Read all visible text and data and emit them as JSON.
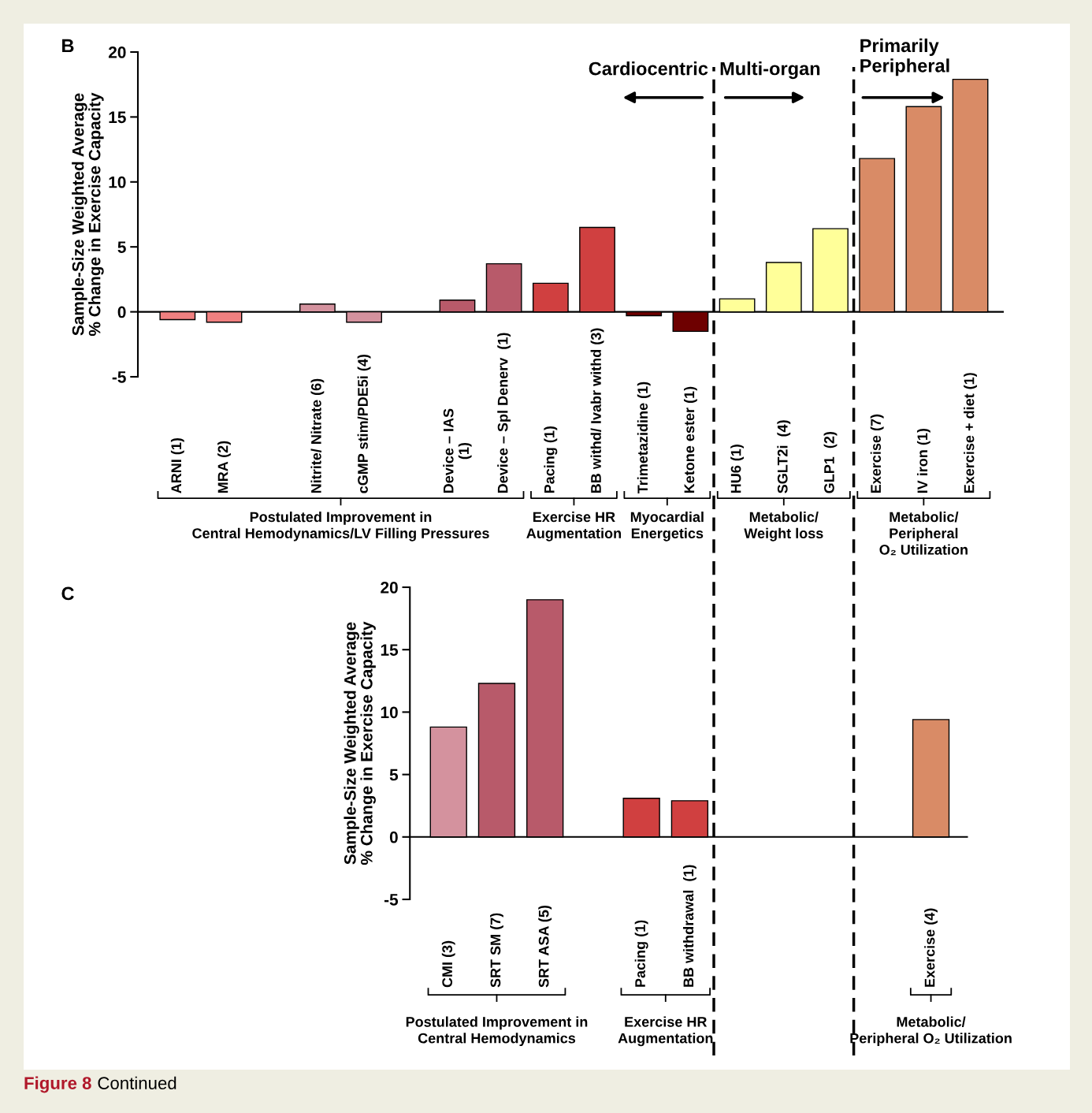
{
  "chart_data": [
    {
      "type": "bar",
      "categories": [
        "ARNI (1)",
        "MRA (2)",
        null,
        "Nitrite/ Nitrate (6)",
        "cGMP stim/PDE5i (4)",
        null,
        "Device – IAS\n(1)",
        "Device – Spl Denerv  (1)",
        "Pacing (1)",
        "BB withd/ Ivabr withd (3)",
        "Trimetazidine (1)",
        "Ketone ester (1)",
        "HU6 (1)",
        "SGLT2i  (4)",
        "GLP1  (2)",
        "Exercise (7)",
        "IV iron (1)",
        "Exercise + diet (1)"
      ],
      "values": [
        -0.6,
        -0.8,
        null,
        0.6,
        -0.8,
        null,
        0.9,
        3.7,
        2.2,
        6.5,
        -0.3,
        -1.5,
        1.0,
        3.8,
        6.4,
        11.8,
        15.8,
        17.9
      ],
      "colors": [
        "#f08080",
        "#f08080",
        null,
        "#d4929e",
        "#d4929e",
        null,
        "#b85a6a",
        "#b85a6a",
        "#d04040",
        "#d04040",
        "#6e0000",
        "#6e0000",
        "#ffff99",
        "#ffff99",
        "#ffff99",
        "#d98b66",
        "#d98b66",
        "#d98b66"
      ],
      "ylim": [
        -5,
        20
      ],
      "yticks": [
        -5,
        0,
        5,
        10,
        15,
        20
      ],
      "ylabel": "Sample-Size Weighted Average\n% Change in Exercise Capacity",
      "annotations": [
        "B",
        "Cardiocentric",
        "Multi-organ",
        "Primarily\nPeripheral",
        "Postulated Improvement in\nCentral Hemodynamics/LV Filling Pressures",
        "Exercise HR\nAugmentation",
        "Myocardial\nEnergetics",
        "Metabolic/\nWeight loss",
        "Metabolic/\nPeripheral\nO₂ Utilization"
      ]
    },
    {
      "type": "bar",
      "categories": [
        "CMI (3)",
        "SRT SM (7)",
        "SRT ASA (5)",
        null,
        "Pacing (1)",
        "BB withdrawal  (1)",
        null,
        null,
        null,
        null,
        "Exercise (4)"
      ],
      "values": [
        8.8,
        12.3,
        19.0,
        null,
        3.1,
        2.9,
        null,
        null,
        null,
        null,
        9.4
      ],
      "colors": [
        "#d4929e",
        "#b85a6a",
        "#b85a6a",
        null,
        "#d04040",
        "#d04040",
        null,
        null,
        null,
        null,
        "#d98b66"
      ],
      "ylim": [
        -5,
        20
      ],
      "yticks": [
        -5,
        0,
        5,
        10,
        15,
        20
      ],
      "ylabel": "Sample-Size Weighted Average\n% Change in Exercise Capacity",
      "annotations": [
        "C",
        "Postulated Improvement in\nCentral Hemodynamics",
        "Exercise HR\nAugmentation",
        "Metabolic/\nPeripheral O₂ Utilization",
        "Figure 8",
        "Continued"
      ]
    }
  ]
}
